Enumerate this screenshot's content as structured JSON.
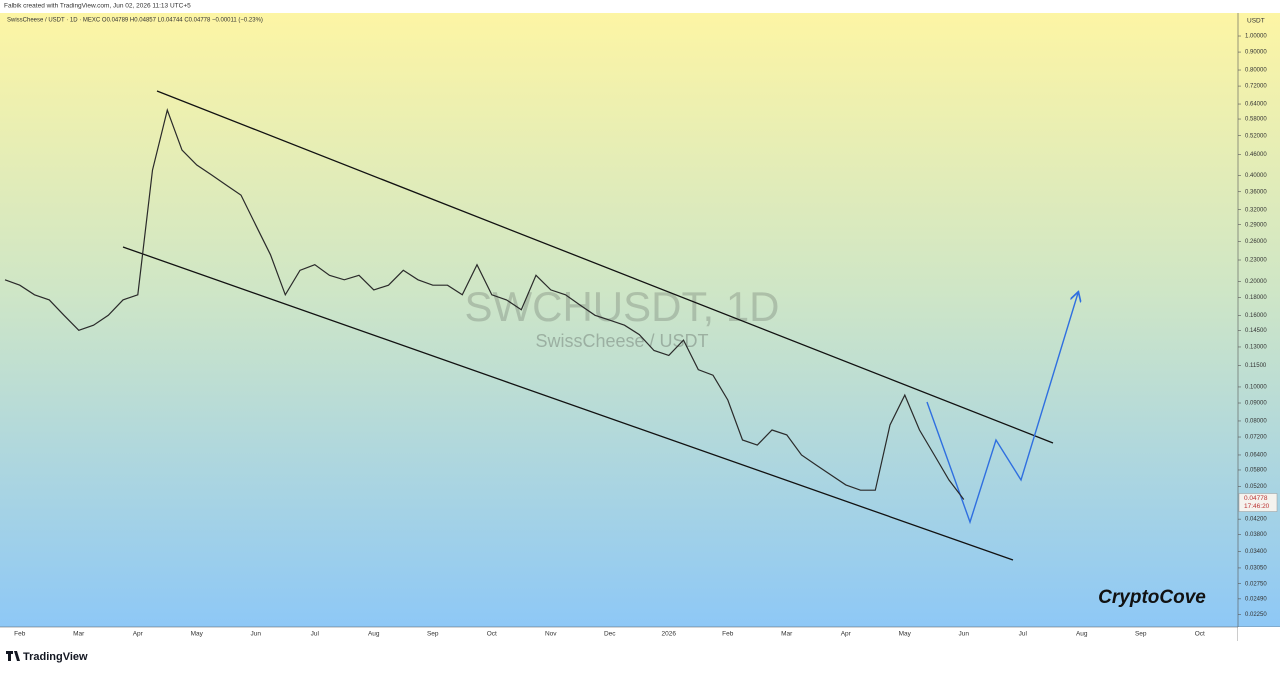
{
  "header": {
    "author_line": "Falbik created with TradingView.com, Jun 02, 2026 11:13 UTC+5"
  },
  "chart_data": {
    "type": "line",
    "legend_line": "SwissCheese / USDT · 1D · MEXC  O0.04789  H0.04857  L0.04744  C0.04778  −0.00011 (−0.23%)",
    "watermark_title": "SWCHUSDT, 1D",
    "watermark_subtitle": "SwissCheese / USDT",
    "currency": "USDT",
    "last_price_label": "0.04778",
    "countdown": "17:46:20",
    "log_scale": true,
    "grid": false,
    "color": "#2a2a2a",
    "categories": [
      null,
      "Feb",
      null,
      null,
      null,
      "Mar",
      null,
      null,
      null,
      "Apr",
      null,
      null,
      null,
      "May",
      null,
      null,
      null,
      "Jun",
      null,
      null,
      null,
      "Jul",
      null,
      null,
      null,
      "Aug",
      null,
      null,
      null,
      "Sep",
      null,
      null,
      null,
      "Oct",
      null,
      null,
      null,
      "Nov",
      null,
      null,
      null,
      "Dec",
      null,
      null,
      null,
      "2026",
      null,
      null,
      null,
      "Feb",
      null,
      null,
      null,
      "Mar",
      null,
      null,
      null,
      "Apr",
      null,
      null,
      null,
      "May",
      null,
      null,
      null,
      "Jun",
      null,
      null,
      null,
      "Jul",
      null,
      null,
      null,
      "Aug",
      null,
      null,
      null,
      "Sep",
      null,
      null,
      null,
      "Oct"
    ],
    "values": [
      0.202,
      0.195,
      0.183,
      0.177,
      0.16,
      0.145,
      0.15,
      0.16,
      0.177,
      0.183,
      0.415,
      0.615,
      0.473,
      0.429,
      0.402,
      0.376,
      0.352,
      0.289,
      0.238,
      0.183,
      0.215,
      0.223,
      0.208,
      0.202,
      0.208,
      0.189,
      0.195,
      0.215,
      0.202,
      0.195,
      0.195,
      0.183,
      0.223,
      0.183,
      0.177,
      0.166,
      0.208,
      0.189,
      0.183,
      0.171,
      0.16,
      0.155,
      0.15,
      0.141,
      0.127,
      0.123,
      0.136,
      0.112,
      0.108,
      0.0918,
      0.0706,
      0.0683,
      0.0754,
      0.073,
      0.064,
      0.0599,
      0.0561,
      0.0526,
      0.0508,
      0.0508,
      0.0779,
      0.0948,
      0.0754,
      0.064,
      0.0543,
      0.04778,
      null,
      null,
      null,
      null,
      null,
      null,
      null,
      null,
      null,
      null,
      null,
      null,
      null,
      null,
      null,
      null
    ],
    "ylim": [
      0.0207,
      1.163
    ],
    "yticks": [
      {
        "value": 1.0,
        "label": "1.00000"
      },
      {
        "value": 0.9,
        "label": "0.90000"
      },
      {
        "value": 0.8,
        "label": "0.80000"
      },
      {
        "value": 0.72,
        "label": "0.72000"
      },
      {
        "value": 0.64,
        "label": "0.64000"
      },
      {
        "value": 0.58,
        "label": "0.58000"
      },
      {
        "value": 0.52,
        "label": "0.52000"
      },
      {
        "value": 0.46,
        "label": "0.46000"
      },
      {
        "value": 0.4,
        "label": "0.40000"
      },
      {
        "value": 0.36,
        "label": "0.36000"
      },
      {
        "value": 0.32,
        "label": "0.32000"
      },
      {
        "value": 0.29,
        "label": "0.29000"
      },
      {
        "value": 0.26,
        "label": "0.26000"
      },
      {
        "value": 0.23,
        "label": "0.23000"
      },
      {
        "value": 0.2,
        "label": "0.20000"
      },
      {
        "value": 0.18,
        "label": "0.18000"
      },
      {
        "value": 0.16,
        "label": "0.16000"
      },
      {
        "value": 0.145,
        "label": "0.14500"
      },
      {
        "value": 0.13,
        "label": "0.13000"
      },
      {
        "value": 0.115,
        "label": "0.11500"
      },
      {
        "value": 0.1,
        "label": "0.10000"
      },
      {
        "value": 0.09,
        "label": "0.09000"
      },
      {
        "value": 0.08,
        "label": "0.08000"
      },
      {
        "value": 0.072,
        "label": "0.07200"
      },
      {
        "value": 0.064,
        "label": "0.06400"
      },
      {
        "value": 0.058,
        "label": "0.05800"
      },
      {
        "value": 0.052,
        "label": "0.05200"
      },
      {
        "value": 0.042,
        "label": "0.04200"
      },
      {
        "value": 0.038,
        "label": "0.03800"
      },
      {
        "value": 0.034,
        "label": "0.03400"
      },
      {
        "value": 0.0305,
        "label": "0.03050"
      },
      {
        "value": 0.0275,
        "label": "0.02750"
      },
      {
        "value": 0.0249,
        "label": "0.02490"
      },
      {
        "value": 0.0225,
        "label": "0.02250"
      }
    ],
    "brand": "CryptoCove"
  },
  "footer": {
    "logo_text": "TradingView"
  }
}
